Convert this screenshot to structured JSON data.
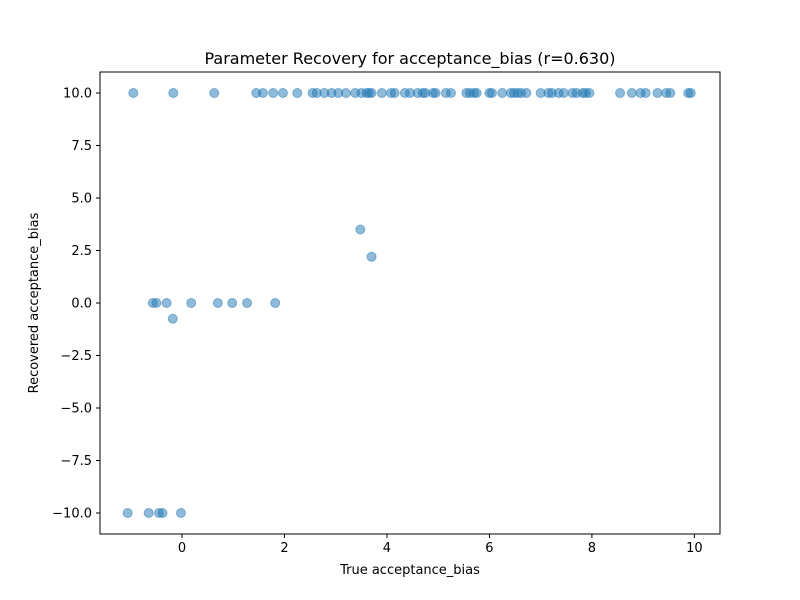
{
  "chart_data": {
    "type": "scatter",
    "title": "Parameter Recovery for acceptance_bias (r=0.630)",
    "xlabel": "True acceptance_bias",
    "ylabel": "Recovered acceptance_bias",
    "xlim": [
      -1.6,
      10.5
    ],
    "ylim": [
      -11,
      11
    ],
    "grid": false,
    "x_ticks": [
      0,
      2,
      4,
      6,
      8,
      10
    ],
    "x_tick_labels": [
      "0",
      "2",
      "4",
      "6",
      "8",
      "10"
    ],
    "y_ticks": [
      10,
      7.5,
      5,
      2.5,
      0,
      -2.5,
      -5,
      -7.5,
      -10
    ],
    "y_tick_labels": [
      "10.0",
      "7.5",
      "5.0",
      "2.5",
      "0.0",
      "−2.5",
      "−5.0",
      "−7.5",
      "−10.0"
    ],
    "point_color": "#1f77b4",
    "point_alpha": 0.5,
    "points": [
      {
        "x": -0.95,
        "y": 10
      },
      {
        "x": -0.17,
        "y": 10
      },
      {
        "x": 0.63,
        "y": 10
      },
      {
        "x": 1.45,
        "y": 10
      },
      {
        "x": 1.58,
        "y": 10
      },
      {
        "x": 1.78,
        "y": 10
      },
      {
        "x": 1.97,
        "y": 10
      },
      {
        "x": 2.25,
        "y": 10
      },
      {
        "x": 2.55,
        "y": 10
      },
      {
        "x": 2.63,
        "y": 10
      },
      {
        "x": 2.78,
        "y": 10
      },
      {
        "x": 2.92,
        "y": 10
      },
      {
        "x": 3.05,
        "y": 10
      },
      {
        "x": 3.2,
        "y": 10
      },
      {
        "x": 3.38,
        "y": 10
      },
      {
        "x": 3.5,
        "y": 10
      },
      {
        "x": 3.6,
        "y": 10
      },
      {
        "x": 3.65,
        "y": 10
      },
      {
        "x": 3.7,
        "y": 10
      },
      {
        "x": 3.9,
        "y": 10
      },
      {
        "x": 4.08,
        "y": 10
      },
      {
        "x": 4.15,
        "y": 10
      },
      {
        "x": 4.35,
        "y": 10
      },
      {
        "x": 4.45,
        "y": 10
      },
      {
        "x": 4.6,
        "y": 10
      },
      {
        "x": 4.7,
        "y": 10
      },
      {
        "x": 4.75,
        "y": 10
      },
      {
        "x": 4.9,
        "y": 10
      },
      {
        "x": 4.95,
        "y": 10
      },
      {
        "x": 5.15,
        "y": 10
      },
      {
        "x": 5.25,
        "y": 10
      },
      {
        "x": 5.55,
        "y": 10
      },
      {
        "x": 5.62,
        "y": 10
      },
      {
        "x": 5.7,
        "y": 10
      },
      {
        "x": 5.75,
        "y": 10
      },
      {
        "x": 6.0,
        "y": 10
      },
      {
        "x": 6.05,
        "y": 10
      },
      {
        "x": 6.25,
        "y": 10
      },
      {
        "x": 6.42,
        "y": 10
      },
      {
        "x": 6.48,
        "y": 10
      },
      {
        "x": 6.55,
        "y": 10
      },
      {
        "x": 6.62,
        "y": 10
      },
      {
        "x": 6.72,
        "y": 10
      },
      {
        "x": 7.0,
        "y": 10
      },
      {
        "x": 7.15,
        "y": 10
      },
      {
        "x": 7.22,
        "y": 10
      },
      {
        "x": 7.35,
        "y": 10
      },
      {
        "x": 7.45,
        "y": 10
      },
      {
        "x": 7.62,
        "y": 10
      },
      {
        "x": 7.7,
        "y": 10
      },
      {
        "x": 7.82,
        "y": 10
      },
      {
        "x": 7.88,
        "y": 10
      },
      {
        "x": 7.95,
        "y": 10
      },
      {
        "x": 8.55,
        "y": 10
      },
      {
        "x": 8.78,
        "y": 10
      },
      {
        "x": 8.95,
        "y": 10
      },
      {
        "x": 9.05,
        "y": 10
      },
      {
        "x": 9.28,
        "y": 10
      },
      {
        "x": 9.45,
        "y": 10
      },
      {
        "x": 9.53,
        "y": 10
      },
      {
        "x": 9.88,
        "y": 10
      },
      {
        "x": 9.93,
        "y": 10
      },
      {
        "x": 3.48,
        "y": 3.5
      },
      {
        "x": 3.7,
        "y": 2.2
      },
      {
        "x": -0.57,
        "y": 0
      },
      {
        "x": -0.5,
        "y": 0
      },
      {
        "x": -0.3,
        "y": 0
      },
      {
        "x": 0.18,
        "y": 0
      },
      {
        "x": 0.7,
        "y": 0
      },
      {
        "x": 0.98,
        "y": 0
      },
      {
        "x": 1.27,
        "y": 0
      },
      {
        "x": 1.82,
        "y": 0
      },
      {
        "x": -0.18,
        "y": -0.75
      },
      {
        "x": -1.06,
        "y": -10
      },
      {
        "x": -0.65,
        "y": -10
      },
      {
        "x": -0.45,
        "y": -10
      },
      {
        "x": -0.38,
        "y": -10
      },
      {
        "x": -0.02,
        "y": -10
      }
    ]
  }
}
